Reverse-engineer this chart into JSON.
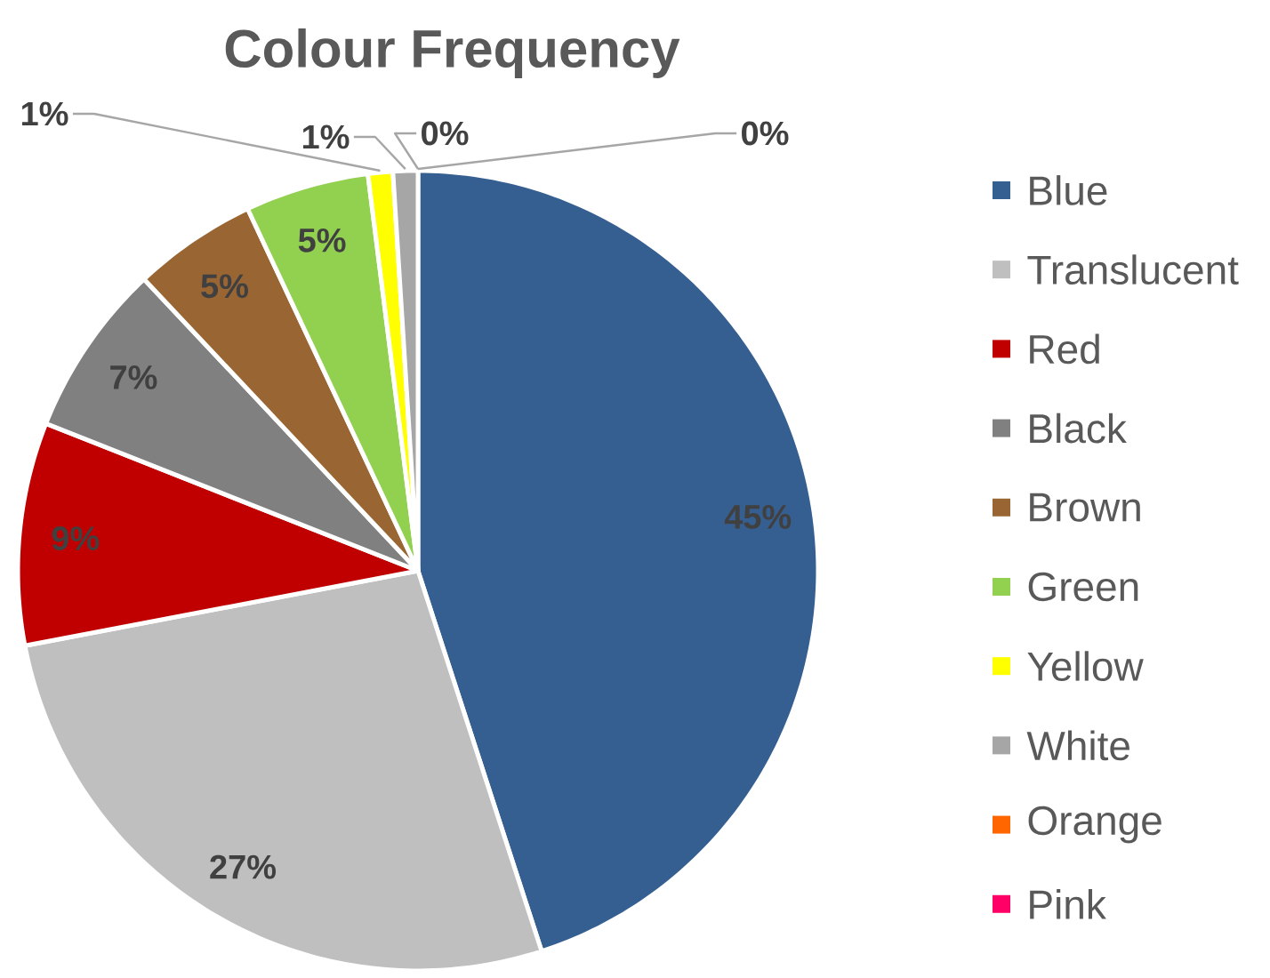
{
  "chart_data": {
    "type": "pie",
    "title": "Colour Frequency",
    "categories": [
      "Blue",
      "Translucent",
      "Red",
      "Black",
      "Brown",
      "Green",
      "Yellow",
      "White",
      "Orange",
      "Pink"
    ],
    "values": [
      45,
      27,
      9,
      7,
      5,
      5,
      1,
      1,
      0,
      0
    ],
    "colors": [
      "#365f91",
      "#bfbfbf",
      "#c00000",
      "#808080",
      "#996633",
      "#92d050",
      "#ffff00",
      "#a6a6a6",
      "#ff6600",
      "#ff0066"
    ],
    "value_labels": [
      "45%",
      "27%",
      "9%",
      "7%",
      "5%",
      "5%",
      "1%",
      "1%",
      "0%",
      "0%"
    ],
    "legend": "right"
  }
}
